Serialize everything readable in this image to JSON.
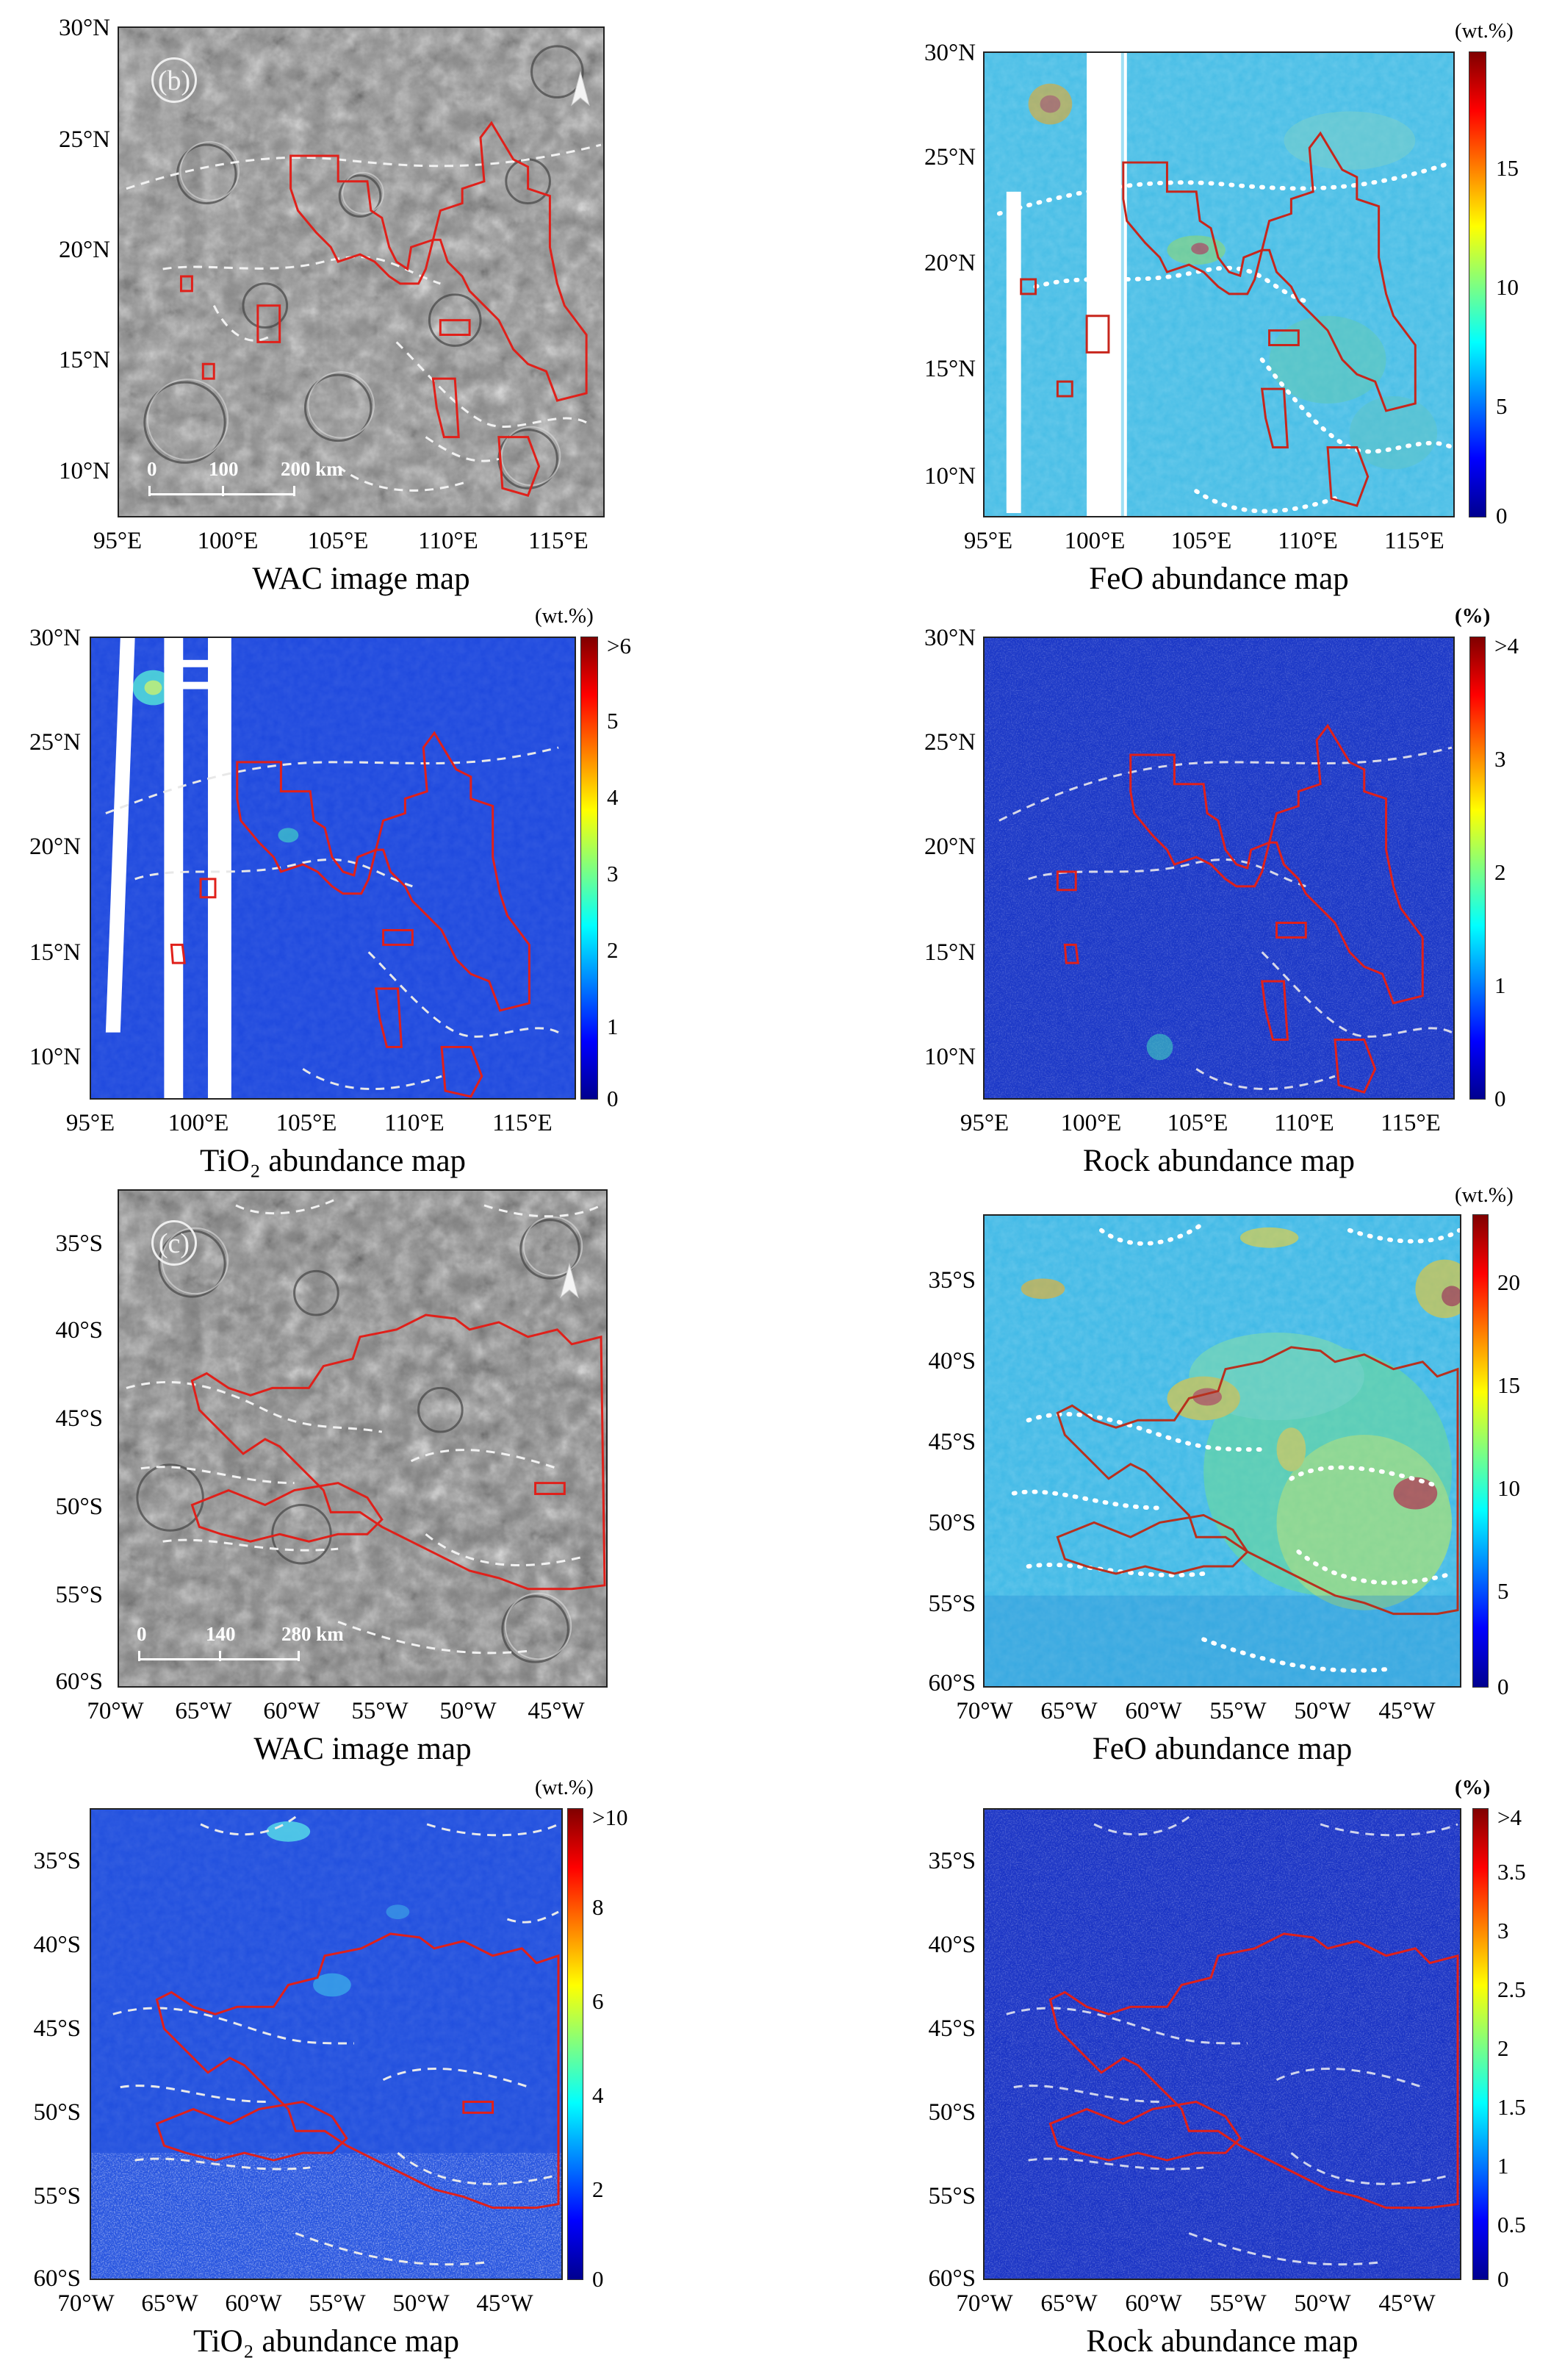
{
  "colors": {
    "boundary_red": "#e0201a",
    "dashed_white": "#f2f2f2",
    "wac_gray": "#7a7a7a",
    "feo_cyan": "#3fc1e8",
    "tio2_blue": "#1e4fe0",
    "rock_blue": "#1632c8"
  },
  "icons": {
    "north_arrow": "north-arrow-icon"
  },
  "group_b": {
    "label": "(b)",
    "y_ticks": [
      "30°N",
      "25°N",
      "20°N",
      "15°N",
      "10°N"
    ],
    "x_ticks": [
      "95°E",
      "100°E",
      "105°E",
      "110°E",
      "115°E"
    ],
    "scale_bar": [
      "0",
      "100",
      "200 km"
    ],
    "wac": {
      "caption": "WAC image map"
    },
    "feo": {
      "caption": "FeO abundance map",
      "unit": "(wt.%)",
      "cbar_ticks": [
        "15",
        "10",
        "5",
        "0"
      ]
    },
    "tio2": {
      "caption": "TiO₂ abundance map",
      "unit": "(wt.%)",
      "cbar_ticks": [
        ">6",
        "5",
        "4",
        "3",
        "2",
        "1",
        "0"
      ]
    },
    "rock": {
      "caption": "Rock abundance map",
      "unit": "(%)",
      "cbar_ticks": [
        ">4",
        "3",
        "2",
        "1",
        "0"
      ]
    }
  },
  "group_c": {
    "label": "(c)",
    "y_ticks": [
      "35°S",
      "40°S",
      "45°S",
      "50°S",
      "55°S",
      "60°S"
    ],
    "x_ticks": [
      "70°W",
      "65°W",
      "60°W",
      "55°W",
      "50°W",
      "45°W"
    ],
    "scale_bar": [
      "0",
      "140",
      "280 km"
    ],
    "wac": {
      "caption": "WAC image map"
    },
    "feo": {
      "caption": "FeO abundance map",
      "unit": "(wt.%)",
      "cbar_ticks": [
        "20",
        "15",
        "10",
        "5",
        "0"
      ]
    },
    "tio2": {
      "caption": "TiO₂ abundance map",
      "unit": "(wt.%)",
      "cbar_ticks": [
        ">10",
        "8",
        "6",
        "4",
        "2",
        "0"
      ]
    },
    "rock": {
      "caption": "Rock abundance map",
      "unit": "(%)",
      "cbar_ticks": [
        ">4",
        "3.5",
        "3",
        "2.5",
        "2",
        "1.5",
        "1",
        "0.5",
        "0"
      ]
    }
  }
}
